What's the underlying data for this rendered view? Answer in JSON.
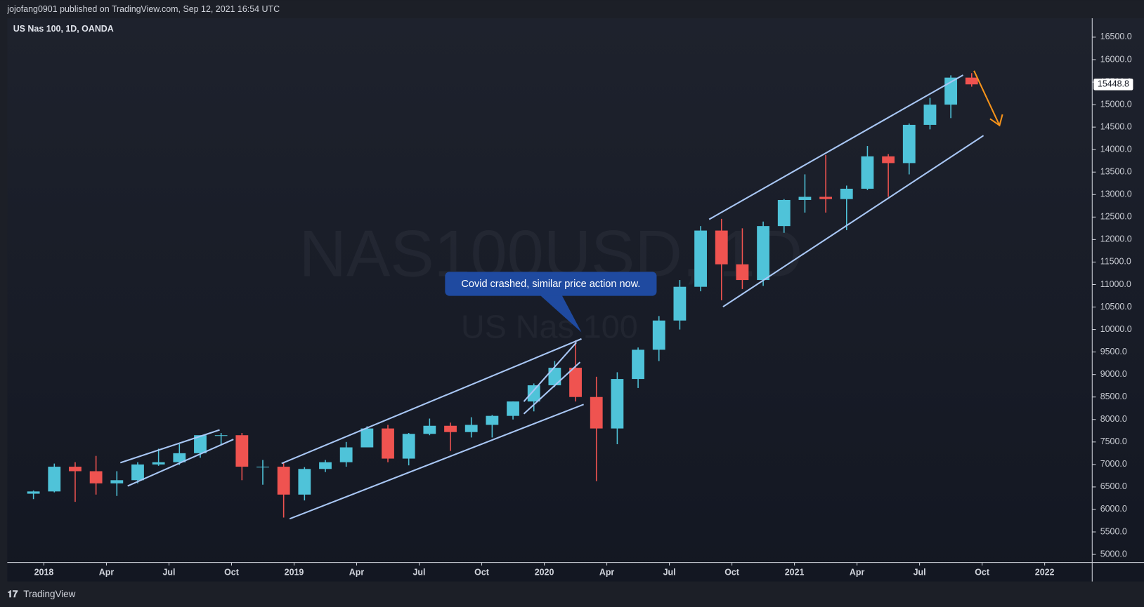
{
  "chart_data": {
    "type": "candlestick",
    "header": "jojofang0901 published on TradingView.com, Sep 12, 2021 16:54 UTC",
    "title": "US Nas 100, 1D, OANDA",
    "watermark": "NAS100USD, 1D",
    "watermark_subtitle": "US Nas 100",
    "annotation": "Covid crashed, similar price action now.",
    "footer": "TradingView",
    "last_price": 15448.8,
    "up_color": "#4fc3d9",
    "down_color": "#ef5350",
    "grid": false,
    "x": [
      "2017-12",
      "2018-01",
      "2018-02",
      "2018-03",
      "2018-04",
      "2018-05",
      "2018-06",
      "2018-07",
      "2018-08",
      "2018-09",
      "2018-10",
      "2018-11",
      "2018-12",
      "2019-01",
      "2019-02",
      "2019-03",
      "2019-04",
      "2019-05",
      "2019-06",
      "2019-07",
      "2019-08",
      "2019-09",
      "2019-10",
      "2019-11",
      "2019-12",
      "2020-01",
      "2020-02",
      "2020-03",
      "2020-04",
      "2020-05",
      "2020-06",
      "2020-07",
      "2020-08",
      "2020-09",
      "2020-10",
      "2020-11",
      "2020-12",
      "2021-01",
      "2021-02",
      "2021-03",
      "2021-04",
      "2021-05",
      "2021-06",
      "2021-07",
      "2021-08",
      "2021-09"
    ],
    "open": [
      6350,
      6400,
      6950,
      6850,
      6580,
      6650,
      7000,
      7050,
      7250,
      7650,
      7650,
      6950,
      6950,
      6330,
      6900,
      7050,
      7380,
      7800,
      7130,
      7680,
      7860,
      7720,
      7880,
      8080,
      8400,
      8760,
      9150,
      8500,
      7800,
      8900,
      9550,
      10200,
      10950,
      12200,
      11450,
      11100,
      12300,
      12880,
      12950,
      12900,
      13130,
      13850,
      13700,
      14550,
      15000,
      15600
    ],
    "high": [
      6420,
      7020,
      7050,
      7190,
      6850,
      7050,
      7350,
      7450,
      7650,
      7700,
      7700,
      7100,
      7050,
      6940,
      7100,
      7500,
      7850,
      7880,
      7700,
      8020,
      7930,
      8050,
      8100,
      8400,
      8800,
      9300,
      9760,
      8950,
      9050,
      9600,
      10300,
      11100,
      12300,
      12460,
      12250,
      12400,
      12900,
      13450,
      13880,
      13200,
      14080,
      13900,
      14580,
      15150,
      15650,
      15700
    ],
    "low": [
      6230,
      6380,
      6170,
      6330,
      6300,
      6580,
      6970,
      6990,
      7150,
      7450,
      6650,
      6550,
      5820,
      6200,
      6830,
      6950,
      7380,
      7050,
      6980,
      7650,
      7300,
      7600,
      7600,
      8000,
      8180,
      8720,
      8400,
      6630,
      7450,
      8700,
      9300,
      10000,
      10850,
      10650,
      10900,
      10970,
      12150,
      12600,
      12600,
      12210,
      13100,
      12950,
      13450,
      14450,
      14700,
      15400
    ],
    "close": [
      6400,
      6950,
      6850,
      6580,
      6650,
      7000,
      7050,
      7250,
      7650,
      7650,
      6950,
      6950,
      6330,
      6900,
      7050,
      7380,
      7800,
      7130,
      7680,
      7860,
      7720,
      7880,
      8080,
      8400,
      8760,
      9150,
      8500,
      7800,
      8900,
      9550,
      10200,
      10950,
      12200,
      11450,
      11100,
      12300,
      12880,
      12950,
      12900,
      13130,
      13850,
      13700,
      14550,
      15000,
      15600,
      15450
    ],
    "xlim": [
      "2017-11",
      "2022-03"
    ],
    "xticks": [
      {
        "value": "2018-01",
        "label": "2018"
      },
      {
        "value": "2018-04",
        "label": "Apr"
      },
      {
        "value": "2018-07",
        "label": "Jul"
      },
      {
        "value": "2018-10",
        "label": "Oct"
      },
      {
        "value": "2019-01",
        "label": "2019"
      },
      {
        "value": "2019-04",
        "label": "Apr"
      },
      {
        "value": "2019-07",
        "label": "Jul"
      },
      {
        "value": "2019-10",
        "label": "Oct"
      },
      {
        "value": "2020-01",
        "label": "2020"
      },
      {
        "value": "2020-04",
        "label": "Apr"
      },
      {
        "value": "2020-07",
        "label": "Jul"
      },
      {
        "value": "2020-10",
        "label": "Oct"
      },
      {
        "value": "2021-01",
        "label": "2021"
      },
      {
        "value": "2021-04",
        "label": "Apr"
      },
      {
        "value": "2021-07",
        "label": "Jul"
      },
      {
        "value": "2021-10",
        "label": "Oct"
      },
      {
        "value": "2022-01",
        "label": "2022"
      }
    ],
    "ylim": [
      4820,
      16920
    ],
    "yticks": [
      {
        "value": 5000,
        "label": "5000.0"
      },
      {
        "value": 5500,
        "label": "5500.0"
      },
      {
        "value": 6000,
        "label": "6000.0"
      },
      {
        "value": 6500,
        "label": "6500.0"
      },
      {
        "value": 7000,
        "label": "7000.0"
      },
      {
        "value": 7500,
        "label": "7500.0"
      },
      {
        "value": 8000,
        "label": "8000.0"
      },
      {
        "value": 8500,
        "label": "8500.0"
      },
      {
        "value": 9000,
        "label": "9000.0"
      },
      {
        "value": 9500,
        "label": "9500.0"
      },
      {
        "value": 10000,
        "label": "10000.0"
      },
      {
        "value": 10500,
        "label": "10500.0"
      },
      {
        "value": 11000,
        "label": "11000.0"
      },
      {
        "value": 11500,
        "label": "11500.0"
      },
      {
        "value": 12000,
        "label": "12000.0"
      },
      {
        "value": 12500,
        "label": "12500.0"
      },
      {
        "value": 13000,
        "label": "13000.0"
      },
      {
        "value": 13500,
        "label": "13500.0"
      },
      {
        "value": 14000,
        "label": "14000.0"
      },
      {
        "value": 14500,
        "label": "14500.0"
      },
      {
        "value": 15000,
        "label": "15000.0"
      },
      {
        "value": 15500,
        "label": "15500.0"
      },
      {
        "value": 16000,
        "label": "16000.0"
      },
      {
        "value": 16500,
        "label": "16500.0"
      }
    ]
  }
}
